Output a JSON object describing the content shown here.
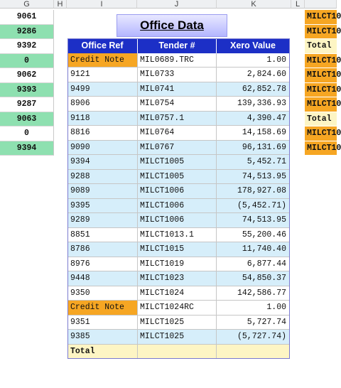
{
  "columns": {
    "g": "G",
    "h": "H",
    "i": "I",
    "j": "J",
    "k": "K",
    "l": "L"
  },
  "left_col": [
    {
      "value": "9061",
      "style": "white"
    },
    {
      "value": "9286",
      "style": "green"
    },
    {
      "value": "9392",
      "style": "white"
    },
    {
      "value": "0",
      "style": "green"
    },
    {
      "value": "9062",
      "style": "white"
    },
    {
      "value": "9393",
      "style": "green"
    },
    {
      "value": "9287",
      "style": "white"
    },
    {
      "value": "9063",
      "style": "green"
    },
    {
      "value": "0",
      "style": "white"
    },
    {
      "value": "9394",
      "style": "green"
    }
  ],
  "right_col": [
    {
      "value": "MILCT10",
      "style": "orange"
    },
    {
      "value": "MILCT10",
      "style": "orange"
    },
    {
      "value": "Total",
      "style": "yellow"
    },
    {
      "value": "MILCT10",
      "style": "orange"
    },
    {
      "value": "MILCT10",
      "style": "orange"
    },
    {
      "value": "MILCT10",
      "style": "orange"
    },
    {
      "value": "MILCT10",
      "style": "orange"
    },
    {
      "value": "Total",
      "style": "yellow"
    },
    {
      "value": "MILCT10",
      "style": "orange"
    },
    {
      "value": "MILCT10",
      "style": "orange"
    }
  ],
  "title": "Office Data",
  "headers": {
    "office_ref": "Office Ref",
    "tender": "Tender #",
    "xero_value": "Xero Value"
  },
  "rows": [
    {
      "office_ref": "Credit Note",
      "tender": "MIL0689.TRC",
      "value": "1.00",
      "style": "credit"
    },
    {
      "office_ref": "9121",
      "tender": "MIL0733",
      "value": "2,824.60",
      "style": "white"
    },
    {
      "office_ref": "9499",
      "tender": "MIL0741",
      "value": "62,852.78",
      "style": "blue"
    },
    {
      "office_ref": "8906",
      "tender": "MIL0754",
      "value": "139,336.93",
      "style": "white"
    },
    {
      "office_ref": "9118",
      "tender": "MIL0757.1",
      "value": "4,390.47",
      "style": "blue"
    },
    {
      "office_ref": "8816",
      "tender": "MIL0764",
      "value": "14,158.69",
      "style": "white"
    },
    {
      "office_ref": "9090",
      "tender": "MIL0767",
      "value": "96,131.69",
      "style": "blue"
    },
    {
      "office_ref": "9394",
      "tender": "MILCT1005",
      "value": "5,452.71",
      "style": "blue"
    },
    {
      "office_ref": "9288",
      "tender": "MILCT1005",
      "value": "74,513.95",
      "style": "blue"
    },
    {
      "office_ref": "9089",
      "tender": "MILCT1006",
      "value": "178,927.08",
      "style": "blue"
    },
    {
      "office_ref": "9395",
      "tender": "MILCT1006",
      "value": "(5,452.71)",
      "style": "blue"
    },
    {
      "office_ref": "9289",
      "tender": "MILCT1006",
      "value": "74,513.95",
      "style": "blue"
    },
    {
      "office_ref": "8851",
      "tender": "MILCT1013.1",
      "value": "55,200.46",
      "style": "white"
    },
    {
      "office_ref": "8786",
      "tender": "MILCT1015",
      "value": "11,740.40",
      "style": "blue"
    },
    {
      "office_ref": "8976",
      "tender": "MILCT1019",
      "value": "6,877.44",
      "style": "white"
    },
    {
      "office_ref": "9448",
      "tender": "MILCT1023",
      "value": "54,850.37",
      "style": "blue"
    },
    {
      "office_ref": "9350",
      "tender": "MILCT1024",
      "value": "142,586.77",
      "style": "white"
    },
    {
      "office_ref": "Credit Note",
      "tender": "MILCT1024RC",
      "value": "1.00",
      "style": "credit"
    },
    {
      "office_ref": "9351",
      "tender": "MILCT1025",
      "value": "5,727.74",
      "style": "white"
    },
    {
      "office_ref": "9385",
      "tender": "MILCT1025",
      "value": "(5,727.74)",
      "style": "blue"
    },
    {
      "office_ref": "Total",
      "tender": "",
      "value": "",
      "style": "total"
    }
  ]
}
